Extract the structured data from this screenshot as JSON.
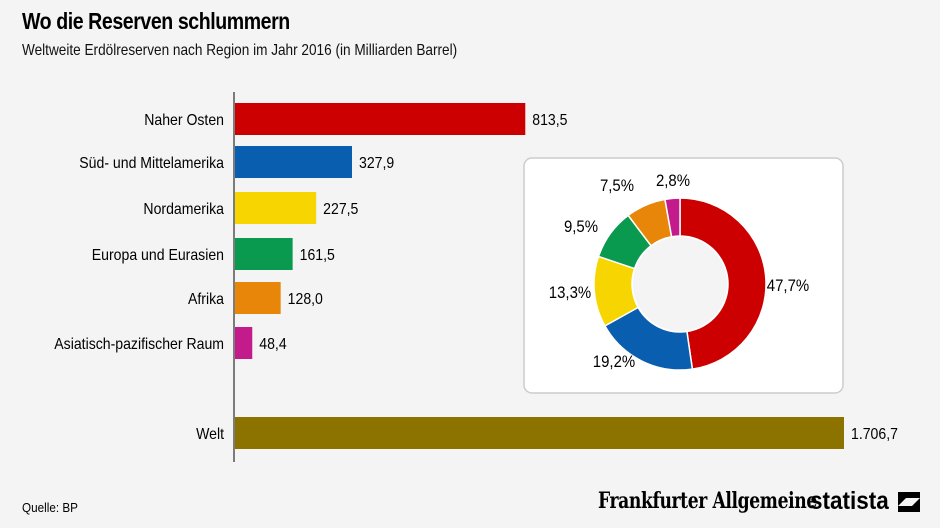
{
  "title": "Wo die Reserven schlummern",
  "subtitle": "Weltweite Erdölreserven nach Region im Jahr 2016 (in Milliarden Barrel)",
  "source": "Quelle: BP",
  "logos": {
    "faz": "Frankfurter Allgemeine",
    "statista": "statista"
  },
  "chart_data": [
    {
      "type": "bar",
      "orientation": "horizontal",
      "categories": [
        "Naher Osten",
        "Süd- und Mittelamerika",
        "Nordamerika",
        "Europa und Eurasien",
        "Afrika",
        "Asiatisch-pazifischer Raum",
        "Welt"
      ],
      "values": [
        813.5,
        327.9,
        227.5,
        161.5,
        128.0,
        48.4,
        1706.7
      ],
      "labels": [
        "813,5",
        "327,9",
        "227,5",
        "161,5",
        "128,0",
        "48,4",
        "1.706,7"
      ],
      "colors": [
        "#cc0000",
        "#0a5eb0",
        "#f7d500",
        "#0a9a4f",
        "#e8860a",
        "#c41b8c",
        "#8c7300"
      ]
    },
    {
      "type": "pie",
      "donut": true,
      "categories": [
        "Naher Osten",
        "Süd- und Mittelamerika",
        "Nordamerika",
        "Europa und Eurasien",
        "Afrika",
        "Asiatisch-pazifischer Raum"
      ],
      "values": [
        47.7,
        19.2,
        13.3,
        9.5,
        7.5,
        2.8
      ],
      "labels": [
        "47,7%",
        "19,2%",
        "13,3%",
        "9,5%",
        "7,5%",
        "2,8%"
      ],
      "colors": [
        "#cc0000",
        "#0a5eb0",
        "#f7d500",
        "#0a9a4f",
        "#e8860a",
        "#c41b8c"
      ]
    }
  ]
}
